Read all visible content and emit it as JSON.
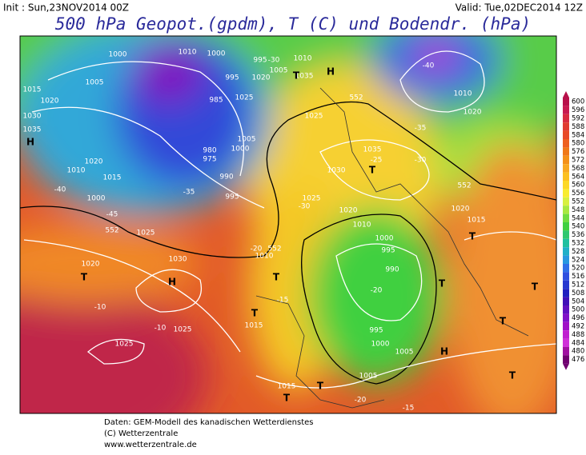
{
  "header": {
    "init": "Init : Sun,23NOV2014 00Z",
    "valid": "Valid: Tue,02DEC2014 12Z",
    "title": "500 hPa Geopot.(gpdm), T (C) und Bodendr. (hPa)"
  },
  "map_labels": [
    "1005",
    "1000",
    "1010",
    "1000",
    "995",
    "985",
    "980",
    "975",
    "990",
    "995",
    "1005",
    "1000",
    "1015",
    "1020",
    "1030",
    "1035",
    "H",
    "1010",
    "1020",
    "1015",
    "1000",
    "552",
    "1025",
    "1030",
    "H",
    "T",
    "1020",
    "1025",
    "1025",
    "1015",
    "T",
    "T",
    "-20",
    "1010",
    "1035",
    "1025",
    "1035",
    "1030",
    "1025",
    "1020",
    "1010",
    "1000",
    "995",
    "990",
    "995",
    "1000",
    "1005",
    "H",
    "1015",
    "1020",
    "1010",
    "1020",
    "-40",
    "-35",
    "-30",
    "-25",
    "-20",
    "-15",
    "-10",
    "-10",
    "1005",
    "1015",
    "T",
    "T",
    "T",
    "T",
    "T",
    "T",
    "T",
    "552",
    "552",
    "552",
    "-15",
    "-20",
    "-30",
    "-35",
    "-40",
    "-45",
    "H",
    "T",
    "T",
    "1025",
    "1020",
    "1005",
    "995",
    "1010",
    "-30"
  ],
  "legend": {
    "values": [
      600,
      596,
      592,
      588,
      584,
      580,
      576,
      572,
      568,
      564,
      560,
      556,
      552,
      548,
      544,
      540,
      536,
      532,
      528,
      524,
      520,
      516,
      512,
      508,
      504,
      500,
      496,
      492,
      488,
      484,
      480,
      476
    ],
    "colors": [
      "#b8104a",
      "#c81a50",
      "#d82a40",
      "#e03a30",
      "#e84a28",
      "#ee6020",
      "#f07818",
      "#f49018",
      "#f8a820",
      "#fcc020",
      "#fcd828",
      "#f8ec30",
      "#d8f040",
      "#a8e840",
      "#70dc40",
      "#40d040",
      "#30c870",
      "#20c0a0",
      "#20b0c8",
      "#2898e0",
      "#3070e8",
      "#3050e0",
      "#2838d0",
      "#2020c0",
      "#4010b8",
      "#6010c0",
      "#8010c8",
      "#a010c8",
      "#c020d0",
      "#d030d8",
      "#a010a0",
      "#700070"
    ]
  },
  "footer": {
    "line1": "Daten: GEM-Modell des kanadischen Wetterdienstes",
    "line2": "(C) Wetterzentrale",
    "line3": "www.wetterzentrale.de"
  }
}
